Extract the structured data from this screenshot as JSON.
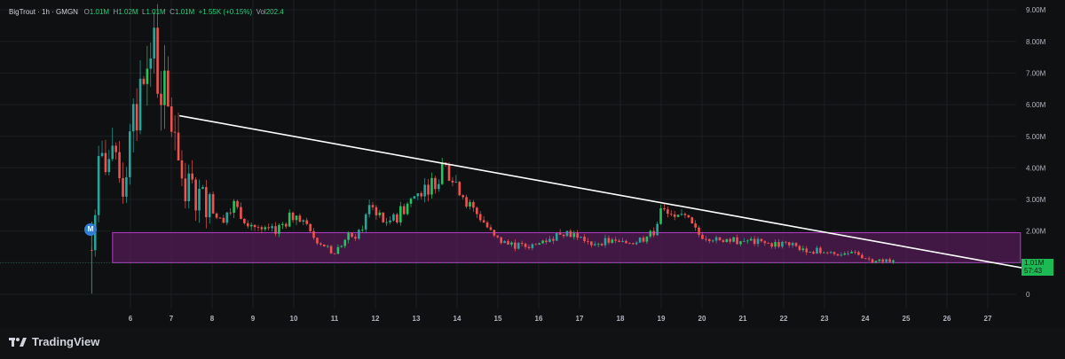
{
  "legend": {
    "symbol": "BigTrout · 1h · GMGN",
    "open_label": "O",
    "open": "1.01M",
    "high_label": "H",
    "high": "1.02M",
    "low_label": "L",
    "low": "1.01M",
    "close_label": "C",
    "close": "1.01M",
    "change": "+1.55K (+0.15%)",
    "vol_label": "Vol",
    "vol": "202.4"
  },
  "price_badge": {
    "price": "1.01M",
    "countdown": "57:43"
  },
  "marker": {
    "label": "M"
  },
  "footer": {
    "brand": "TradingView"
  },
  "colors": {
    "up": "#26a69a",
    "up_bright": "#22c55e",
    "down": "#ef5350",
    "trendline": "#ffffff",
    "zone_fill": "#6b1f6b",
    "zone_border": "#b03cc4",
    "badge": "#1db954"
  },
  "chart_data": {
    "type": "candlestick",
    "title": "",
    "x_ticks": [
      "6",
      "7",
      "8",
      "9",
      "10",
      "11",
      "12",
      "13",
      "14",
      "15",
      "16",
      "17",
      "18",
      "19",
      "20",
      "21",
      "22",
      "23",
      "24",
      "25",
      "26",
      "27"
    ],
    "y_ticks": [
      "0",
      "1.00M",
      "2.00M",
      "3.00M",
      "4.00M",
      "5.00M",
      "6.00M",
      "7.00M",
      "8.00M",
      "9.00M"
    ],
    "ylim": [
      0,
      9000000
    ],
    "xlim": [
      4.8,
      28.0
    ],
    "approx_price_path": [
      [
        5.05,
        1.4
      ],
      [
        5.2,
        3.8
      ],
      [
        5.4,
        4.3
      ],
      [
        5.6,
        4.0
      ],
      [
        5.8,
        3.4
      ],
      [
        6.0,
        4.8
      ],
      [
        6.3,
        6.6
      ],
      [
        6.5,
        8.0
      ],
      [
        6.7,
        6.8
      ],
      [
        6.9,
        5.7
      ],
      [
        7.1,
        5.3
      ],
      [
        7.3,
        3.5
      ],
      [
        7.6,
        3.2
      ],
      [
        7.9,
        2.9
      ],
      [
        8.2,
        2.3
      ],
      [
        8.5,
        2.9
      ],
      [
        8.8,
        2.4
      ],
      [
        9.2,
        2.0
      ],
      [
        9.5,
        2.0
      ],
      [
        9.8,
        2.3
      ],
      [
        10.1,
        2.6
      ],
      [
        10.4,
        1.9
      ],
      [
        10.7,
        1.6
      ],
      [
        11.0,
        1.3
      ],
      [
        11.3,
        1.8
      ],
      [
        11.6,
        1.9
      ],
      [
        11.9,
        2.9
      ],
      [
        12.2,
        2.3
      ],
      [
        12.5,
        2.4
      ],
      [
        12.8,
        2.9
      ],
      [
        13.1,
        3.3
      ],
      [
        13.4,
        3.5
      ],
      [
        13.7,
        4.0
      ],
      [
        14.0,
        3.5
      ],
      [
        14.3,
        2.8
      ],
      [
        14.6,
        2.4
      ],
      [
        14.9,
        1.8
      ],
      [
        15.2,
        1.6
      ],
      [
        15.6,
        1.5
      ],
      [
        16.0,
        1.6
      ],
      [
        16.3,
        1.8
      ],
      [
        16.6,
        2.0
      ],
      [
        16.9,
        1.9
      ],
      [
        17.2,
        1.6
      ],
      [
        17.6,
        1.7
      ],
      [
        18.0,
        1.6
      ],
      [
        18.4,
        1.7
      ],
      [
        18.8,
        1.9
      ],
      [
        19.0,
        2.7
      ],
      [
        19.3,
        2.3
      ],
      [
        19.6,
        2.4
      ],
      [
        19.9,
        1.9
      ],
      [
        20.3,
        1.8
      ],
      [
        20.7,
        1.7
      ],
      [
        21.1,
        1.7
      ],
      [
        21.5,
        1.6
      ],
      [
        21.9,
        1.6
      ],
      [
        22.3,
        1.5
      ],
      [
        22.7,
        1.4
      ],
      [
        23.1,
        1.3
      ],
      [
        23.5,
        1.3
      ],
      [
        23.8,
        1.3
      ],
      [
        24.1,
        1.1
      ],
      [
        24.5,
        1.1
      ],
      [
        24.75,
        1.01
      ]
    ],
    "trendline": {
      "from": [
        7.2,
        5.65
      ],
      "to": [
        28.0,
        0.8
      ]
    },
    "zone": {
      "y_low": 1.0,
      "y_high": 1.95,
      "x_start": 4.8,
      "x_end": 27.8
    },
    "current_price_line": 1.01
  }
}
